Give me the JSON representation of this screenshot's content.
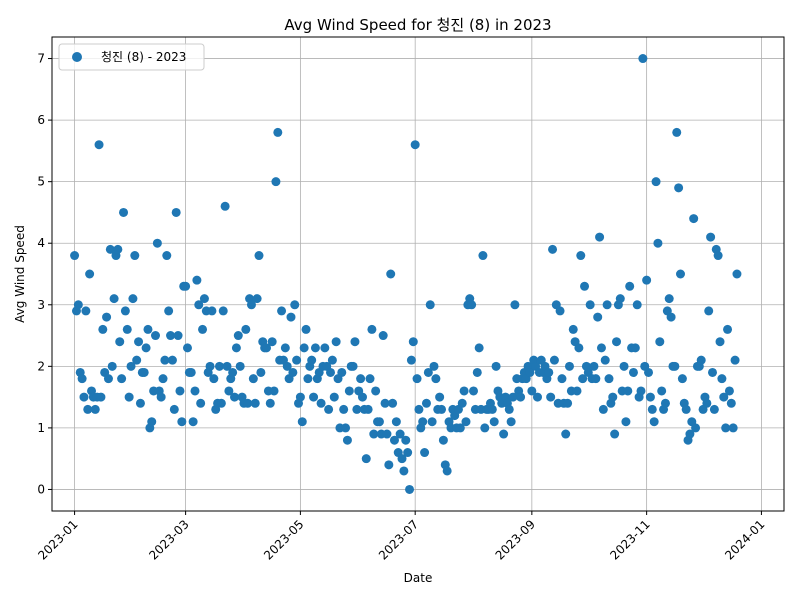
{
  "chart_data": {
    "type": "scatter",
    "title": "Avg Wind Speed for 청진 (8) in 2023",
    "xlabel": "Date",
    "ylabel": "Avg Wind Speed",
    "xlim": [
      "2022-12-20",
      "2024-01-13"
    ],
    "ylim": [
      -0.35,
      7.35
    ],
    "x_ticks": [
      "2023-01",
      "2023-03",
      "2023-05",
      "2023-07",
      "2023-09",
      "2023-11",
      "2024-01"
    ],
    "y_ticks": [
      0,
      1,
      2,
      3,
      4,
      5,
      6,
      7
    ],
    "grid": true,
    "legend_position": "top-left",
    "marker_color": "#1f77b4",
    "series": [
      {
        "name": "청진 (8) - 2023",
        "start_date": "2023-01-01",
        "values": [
          3.8,
          2.9,
          3.0,
          1.9,
          1.8,
          1.5,
          2.9,
          1.3,
          3.5,
          1.6,
          1.5,
          1.3,
          1.5,
          5.6,
          1.5,
          2.6,
          1.9,
          2.8,
          1.8,
          3.9,
          2.0,
          3.1,
          3.8,
          3.9,
          2.4,
          1.8,
          4.5,
          2.9,
          2.6,
          1.5,
          2.0,
          3.1,
          3.8,
          2.1,
          2.4,
          1.4,
          1.9,
          1.9,
          2.3,
          2.6,
          1.0,
          1.1,
          1.6,
          2.5,
          4.0,
          1.6,
          1.5,
          1.8,
          2.1,
          3.8,
          2.9,
          2.5,
          2.1,
          1.3,
          4.5,
          2.5,
          1.6,
          1.1,
          3.3,
          3.3,
          2.3,
          1.9,
          1.9,
          1.1,
          1.6,
          3.4,
          3.0,
          1.4,
          2.6,
          3.1,
          2.9,
          1.9,
          2.0,
          2.9,
          1.8,
          1.3,
          1.4,
          2.0,
          1.4,
          2.9,
          4.6,
          2.0,
          1.6,
          1.8,
          1.9,
          1.5,
          2.3,
          2.5,
          2.0,
          1.5,
          1.4,
          2.6,
          1.4,
          3.1,
          3.0,
          1.8,
          1.4,
          3.1,
          3.8,
          1.9,
          2.4,
          2.3,
          2.3,
          1.6,
          1.4,
          2.4,
          1.6,
          5.0,
          5.8,
          2.1,
          2.9,
          2.1,
          2.3,
          2.0,
          1.8,
          2.8,
          1.9,
          3.0,
          2.1,
          1.4,
          1.5,
          1.1,
          2.3,
          2.6,
          1.8,
          2.0,
          2.1,
          1.5,
          2.3,
          1.8,
          1.9,
          1.4,
          2.0,
          2.3,
          2.0,
          1.3,
          1.9,
          2.1,
          1.5,
          2.4,
          1.8,
          1.0,
          1.9,
          1.3,
          1.0,
          0.8,
          1.6,
          2.0,
          2.0,
          2.4,
          1.3,
          1.6,
          1.8,
          1.5,
          1.3,
          0.5,
          1.3,
          1.8,
          2.6,
          0.9,
          1.6,
          1.1,
          1.1,
          0.9,
          2.5,
          1.4,
          0.9,
          0.4,
          3.5,
          1.4,
          0.8,
          1.1,
          0.6,
          0.9,
          0.5,
          0.3,
          0.8,
          0.6,
          0.0,
          2.1,
          2.4,
          5.6,
          1.8,
          1.3,
          1.0,
          1.1,
          0.6,
          1.4,
          1.9,
          3.0,
          1.1,
          2.0,
          1.8,
          1.3,
          1.5,
          1.3,
          0.8,
          0.4,
          0.3,
          1.1,
          1.0,
          1.3,
          1.2,
          1.0,
          1.3,
          1.0,
          1.4,
          1.6,
          1.1,
          3.0,
          3.1,
          3.0,
          1.6,
          1.3,
          1.9,
          2.3,
          1.3,
          3.8,
          1.0,
          1.3,
          1.3,
          1.4,
          1.3,
          1.1,
          2.0,
          1.6,
          1.5,
          1.4,
          0.9,
          1.5,
          1.4,
          1.3,
          1.1,
          1.5,
          3.0,
          1.8,
          1.6,
          1.5,
          1.8,
          1.9,
          1.8,
          2.0,
          1.9,
          1.6,
          2.1,
          2.0,
          1.5,
          1.9,
          2.1,
          1.9,
          2.0,
          1.8,
          1.9,
          1.5,
          3.9,
          2.1,
          3.0,
          1.4,
          2.9,
          1.8,
          1.4,
          0.9,
          1.4,
          2.0,
          1.6,
          2.6,
          2.4,
          1.6,
          2.3,
          3.8,
          1.8,
          3.3,
          2.0,
          1.9,
          3.0,
          1.8,
          2.0,
          1.8,
          2.8,
          4.1,
          2.3,
          1.3,
          2.1,
          3.0,
          1.8,
          1.4,
          1.5,
          0.9,
          2.4,
          3.0,
          3.1,
          1.6,
          2.0,
          1.1,
          1.6,
          3.3,
          2.3,
          1.9,
          2.3,
          3.0,
          1.5,
          1.6,
          7.0,
          2.0,
          3.4,
          1.9,
          1.5,
          1.3,
          1.1,
          5.0,
          4.0,
          2.4,
          1.6,
          1.3,
          1.4,
          2.9,
          3.1,
          2.8,
          2.0,
          2.0,
          5.8,
          4.9,
          3.5,
          1.8,
          1.4,
          1.3,
          0.8,
          0.9,
          1.1,
          4.4,
          1.0,
          2.0,
          2.0,
          2.1,
          1.3,
          1.5,
          1.4,
          2.9,
          4.1,
          1.9,
          1.3,
          3.9,
          3.8,
          2.4,
          1.8,
          1.5,
          1.0,
          2.6,
          1.6,
          1.4,
          1.0,
          2.1,
          3.5
        ]
      }
    ]
  }
}
